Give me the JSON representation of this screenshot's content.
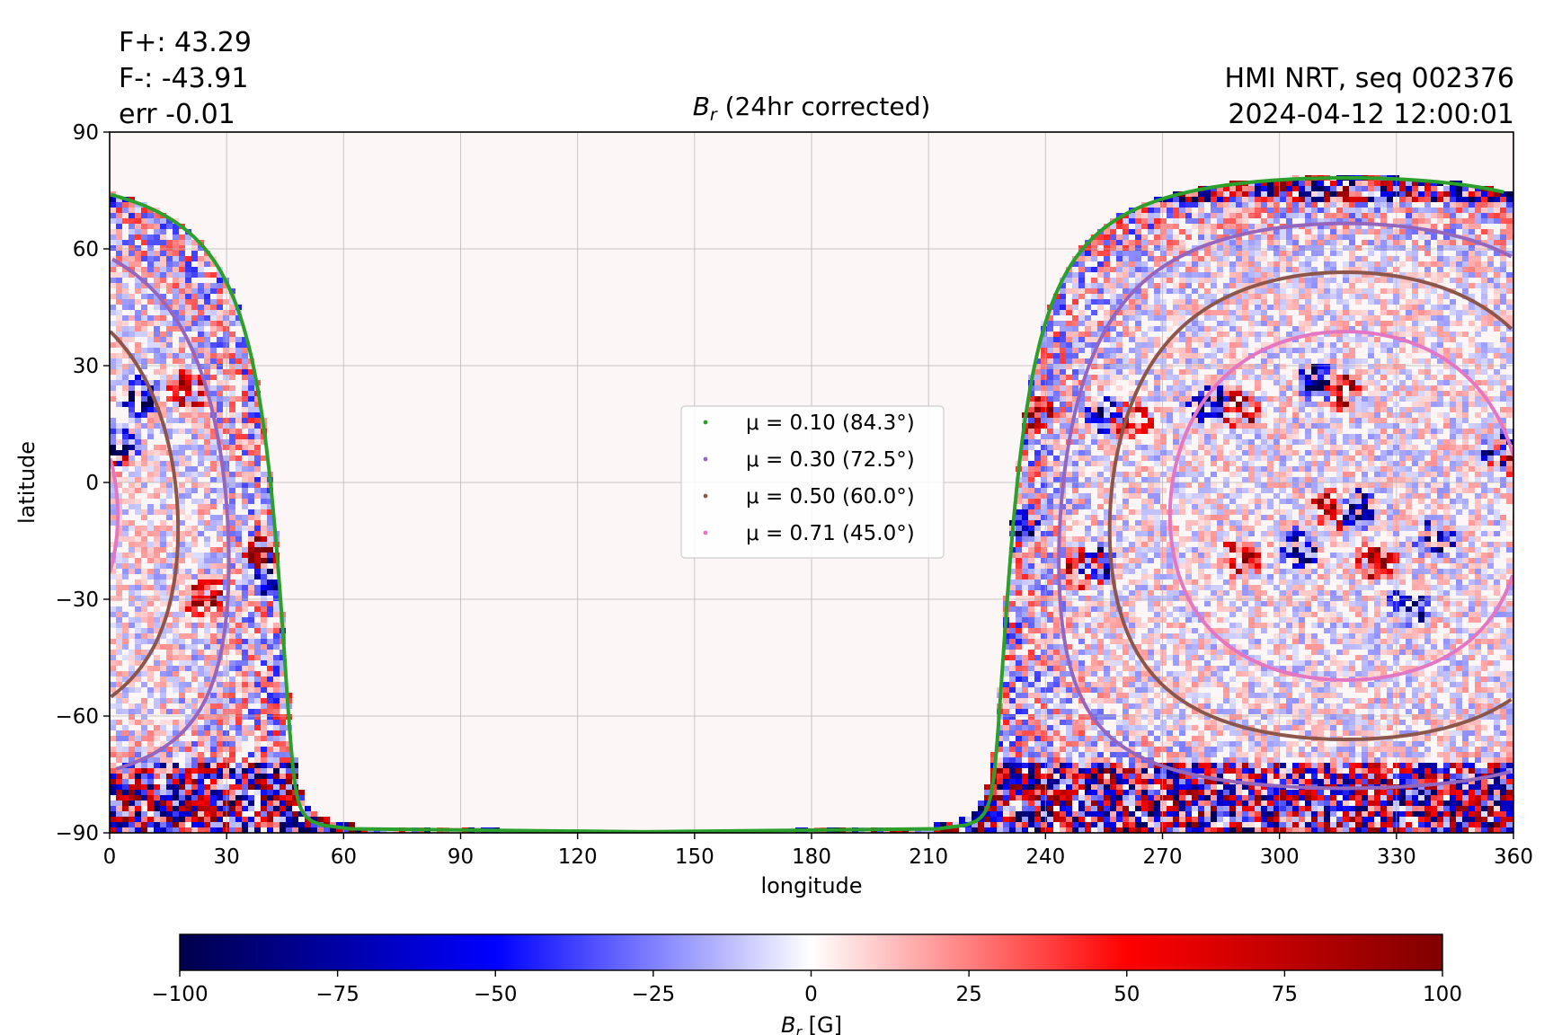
{
  "header": {
    "flux_pos": "F+: 43.29",
    "flux_neg": "F-: -43.91",
    "flux_err": "err -0.01",
    "source": "HMI NRT, seq 002376",
    "timestamp": "2024-04-12 12:00:01"
  },
  "chart_data": {
    "type": "heatmap",
    "title": "B_r (24hr corrected)",
    "title_main": "B",
    "title_sub": "r",
    "title_rest": " (24hr corrected)",
    "xlabel": "longitude",
    "ylabel": "latitude",
    "xlim": [
      0,
      360
    ],
    "ylim": [
      -90,
      90
    ],
    "xticks": [
      0,
      30,
      60,
      90,
      120,
      150,
      180,
      210,
      240,
      270,
      300,
      330,
      360
    ],
    "yticks": [
      -90,
      -60,
      -30,
      0,
      30,
      60,
      90
    ],
    "grid": true,
    "colormap": "seismic",
    "colorbar": {
      "label_main": "B",
      "label_sub": "r",
      "label_rest": " [G]",
      "range": [
        -100,
        100
      ],
      "ticks": [
        -100,
        -75,
        -50,
        -25,
        0,
        25,
        50,
        75,
        100
      ],
      "colors": [
        "#00004c",
        "#0000ff",
        "#ffffff",
        "#ff0000",
        "#800000"
      ]
    },
    "legend": {
      "placement": "center",
      "entries": [
        {
          "label": "μ = 0.10 (84.3°)",
          "color": "#2ca02c"
        },
        {
          "label": "μ = 0.30 (72.5°)",
          "color": "#9467bd"
        },
        {
          "label": "μ = 0.50 (60.0°)",
          "color": "#8c564b"
        },
        {
          "label": "μ = 0.71 (45.0°)",
          "color": "#e377c2"
        }
      ]
    },
    "disk_center": {
      "longitude": 317,
      "latitude": -6
    },
    "contours": [
      {
        "mu": 0.1,
        "color": "#2ca02c"
      },
      {
        "mu": 0.3,
        "color": "#9467bd"
      },
      {
        "mu": 0.5,
        "color": "#8c564b"
      },
      {
        "mu": 0.71,
        "color": "#e377c2"
      }
    ],
    "active_regions": [
      {
        "longitude": 8,
        "latitude": 22,
        "polarity": "neg"
      },
      {
        "longitude": 20,
        "latitude": 24,
        "polarity": "pos"
      },
      {
        "longitude": 3,
        "latitude": 10,
        "polarity": "neg"
      },
      {
        "longitude": 42,
        "latitude": -25,
        "polarity": "neg"
      },
      {
        "longitude": 40,
        "latitude": -18,
        "polarity": "pos"
      },
      {
        "longitude": 25,
        "latitude": -30,
        "polarity": "pos"
      },
      {
        "longitude": 233,
        "latitude": -10,
        "polarity": "neg"
      },
      {
        "longitude": 237,
        "latitude": 18,
        "polarity": "pos"
      },
      {
        "longitude": 250,
        "latitude": -22,
        "polarity": "pos"
      },
      {
        "longitude": 253,
        "latitude": -20,
        "polarity": "neg"
      },
      {
        "longitude": 255,
        "latitude": 18,
        "polarity": "neg"
      },
      {
        "longitude": 262,
        "latitude": 16,
        "polarity": "pos"
      },
      {
        "longitude": 282,
        "latitude": 20,
        "polarity": "neg"
      },
      {
        "longitude": 290,
        "latitude": 19,
        "polarity": "pos"
      },
      {
        "longitude": 310,
        "latitude": 26,
        "polarity": "neg"
      },
      {
        "longitude": 315,
        "latitude": 24,
        "polarity": "pos"
      },
      {
        "longitude": 313,
        "latitude": -7,
        "polarity": "pos"
      },
      {
        "longitude": 320,
        "latitude": -7,
        "polarity": "neg"
      },
      {
        "longitude": 290,
        "latitude": -20,
        "polarity": "pos"
      },
      {
        "longitude": 305,
        "latitude": -17,
        "polarity": "neg"
      },
      {
        "longitude": 340,
        "latitude": -15,
        "polarity": "neg"
      },
      {
        "longitude": 357,
        "latitude": 8,
        "polarity": "neg"
      },
      {
        "longitude": 359,
        "latitude": 6,
        "polarity": "pos"
      },
      {
        "longitude": 325,
        "latitude": -20,
        "polarity": "pos"
      },
      {
        "longitude": 333,
        "latitude": -32,
        "polarity": "neg"
      }
    ]
  }
}
